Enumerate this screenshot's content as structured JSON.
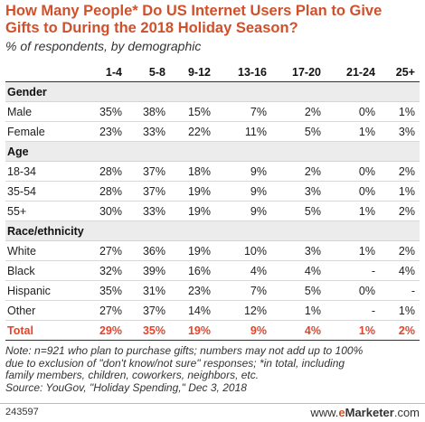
{
  "title": "How Many People* Do US Internet Users Plan to Give Gifts to During the 2018 Holiday Season?",
  "subtitle": "% of respondents, by demographic",
  "colors": {
    "title": "#d1502c",
    "total": "#e8422a",
    "section_bg": "#ececec"
  },
  "chart_data": {
    "type": "table",
    "columns": [
      "1-4",
      "5-8",
      "9-12",
      "13-16",
      "17-20",
      "21-24",
      "25+"
    ],
    "sections": [
      {
        "name": "Gender",
        "rows": [
          {
            "label": "Male",
            "values": [
              "35%",
              "38%",
              "15%",
              "7%",
              "2%",
              "0%",
              "1%"
            ]
          },
          {
            "label": "Female",
            "values": [
              "23%",
              "33%",
              "22%",
              "11%",
              "5%",
              "1%",
              "3%"
            ]
          }
        ]
      },
      {
        "name": "Age",
        "rows": [
          {
            "label": "18-34",
            "values": [
              "28%",
              "37%",
              "18%",
              "9%",
              "2%",
              "0%",
              "2%"
            ]
          },
          {
            "label": "35-54",
            "values": [
              "28%",
              "37%",
              "19%",
              "9%",
              "3%",
              "0%",
              "1%"
            ]
          },
          {
            "label": "55+",
            "values": [
              "30%",
              "33%",
              "19%",
              "9%",
              "5%",
              "1%",
              "2%"
            ]
          }
        ]
      },
      {
        "name": "Race/ethnicity",
        "rows": [
          {
            "label": "White",
            "values": [
              "27%",
              "36%",
              "19%",
              "10%",
              "3%",
              "1%",
              "2%"
            ]
          },
          {
            "label": "Black",
            "values": [
              "32%",
              "39%",
              "16%",
              "4%",
              "4%",
              "-",
              "4%"
            ]
          },
          {
            "label": "Hispanic",
            "values": [
              "35%",
              "31%",
              "23%",
              "7%",
              "5%",
              "0%",
              "-"
            ]
          },
          {
            "label": "Other",
            "values": [
              "27%",
              "37%",
              "14%",
              "12%",
              "1%",
              "-",
              "1%"
            ]
          }
        ]
      }
    ],
    "total": {
      "label": "Total",
      "values": [
        "29%",
        "35%",
        "19%",
        "9%",
        "4%",
        "1%",
        "2%"
      ]
    }
  },
  "note": [
    "Note: n=921 who plan to purchase gifts; numbers may not add up to 100%",
    "due to exclusion of \"don't know/not sure\" responses; *in total, including",
    "family members, children, coworkers, neighbors, etc.",
    "Source: YouGov, \"Holiday Spending,\" Dec 3, 2018"
  ],
  "footer": {
    "id": "243597",
    "brand_prefix": "www.",
    "brand_e": "e",
    "brand_main": "Marketer",
    "brand_suffix": ".com"
  }
}
